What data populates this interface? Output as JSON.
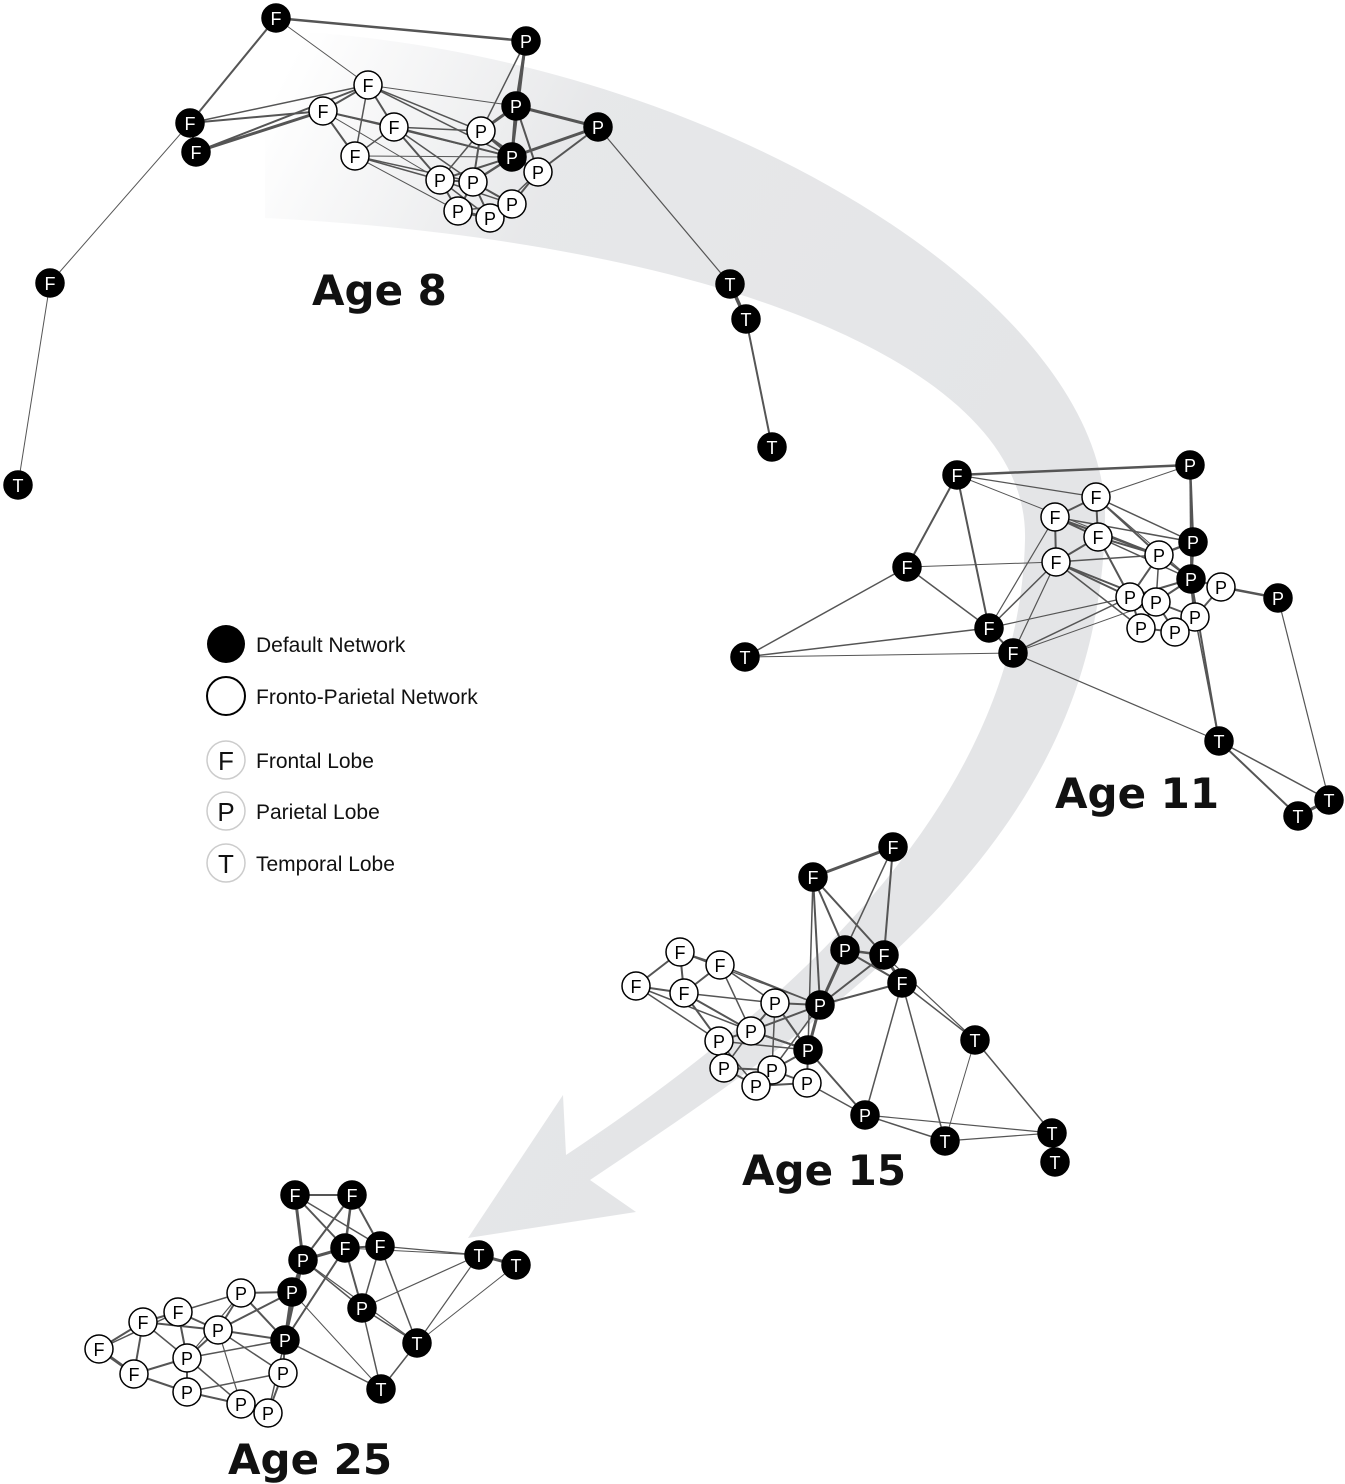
{
  "legend": {
    "default_network": "Default Network",
    "fronto_parietal_network": "Fronto-Parietal Network",
    "frontal": {
      "letter": "F",
      "label": "Frontal Lobe"
    },
    "parietal": {
      "letter": "P",
      "label": "Parietal Lobe"
    },
    "temporal": {
      "letter": "T",
      "label": "Temporal Lobe"
    }
  },
  "colors": {
    "default_network": "#000000",
    "fronto_parietal_network": "#ffffff",
    "edge": "#555555",
    "arrow": "#e4e5e7"
  },
  "graphs": [
    {
      "label": "Age 8"
    },
    {
      "label": "Age 11"
    },
    {
      "label": "Age 15"
    },
    {
      "label": "Age 25"
    }
  ]
}
